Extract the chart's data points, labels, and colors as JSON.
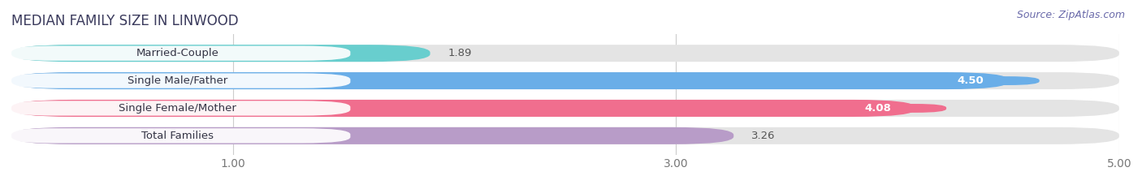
{
  "title": "MEDIAN FAMILY SIZE IN LINWOOD",
  "source": "Source: ZipAtlas.com",
  "categories": [
    "Married-Couple",
    "Single Male/Father",
    "Single Female/Mother",
    "Total Families"
  ],
  "values": [
    1.89,
    4.5,
    4.08,
    3.26
  ],
  "bar_colors": [
    "#68cece",
    "#6aaee8",
    "#f06e8e",
    "#b89cc8"
  ],
  "xlim": [
    0,
    5.0
  ],
  "xticks": [
    1.0,
    3.0,
    5.0
  ],
  "xtick_labels": [
    "1.00",
    "3.00",
    "5.00"
  ],
  "background_color": "#f5f5f5",
  "bar_bg_color": "#e4e4e4",
  "title_fontsize": 12,
  "label_fontsize": 9.5,
  "value_fontsize": 9.5,
  "source_fontsize": 9,
  "title_color": "#3a3a5c",
  "source_color": "#6a6aaa"
}
